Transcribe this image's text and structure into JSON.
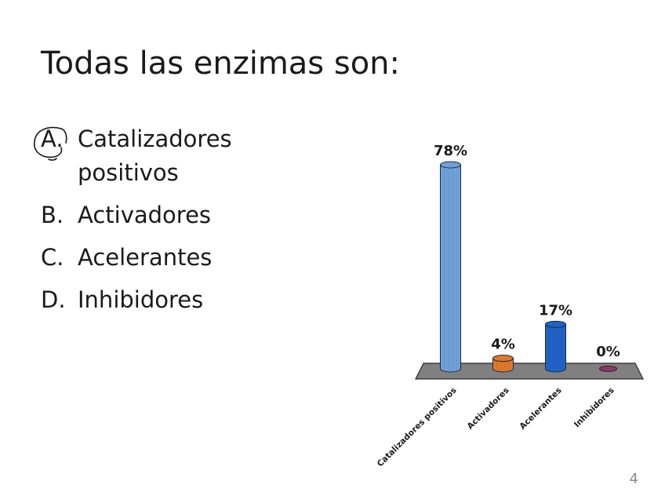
{
  "slide": {
    "title": "Todas las enzimas son:",
    "page_number": "4"
  },
  "options": [
    {
      "letter": "A.",
      "text": "Catalizadores positivos",
      "marked": true
    },
    {
      "letter": "B.",
      "text": "Activadores",
      "marked": false
    },
    {
      "letter": "C.",
      "text": "Acelerantes",
      "marked": false
    },
    {
      "letter": "D.",
      "text": "Inhibidores",
      "marked": false
    }
  ],
  "chart_data": {
    "type": "bar",
    "categories": [
      "Catalizadores positivos",
      "Activadores",
      "Acelerantes",
      "Inhibidores"
    ],
    "values": [
      78,
      4,
      17,
      0
    ],
    "data_labels": [
      "78%",
      "4%",
      "17%",
      "0%"
    ],
    "colors": [
      "#6fa0d8",
      "#e0782a",
      "#1f63c6",
      "#8b3a62"
    ],
    "floor_color": "#808080",
    "ylim": [
      0,
      78
    ],
    "grid": false,
    "legend": "none",
    "title": "",
    "xlabel": "",
    "ylabel": ""
  }
}
